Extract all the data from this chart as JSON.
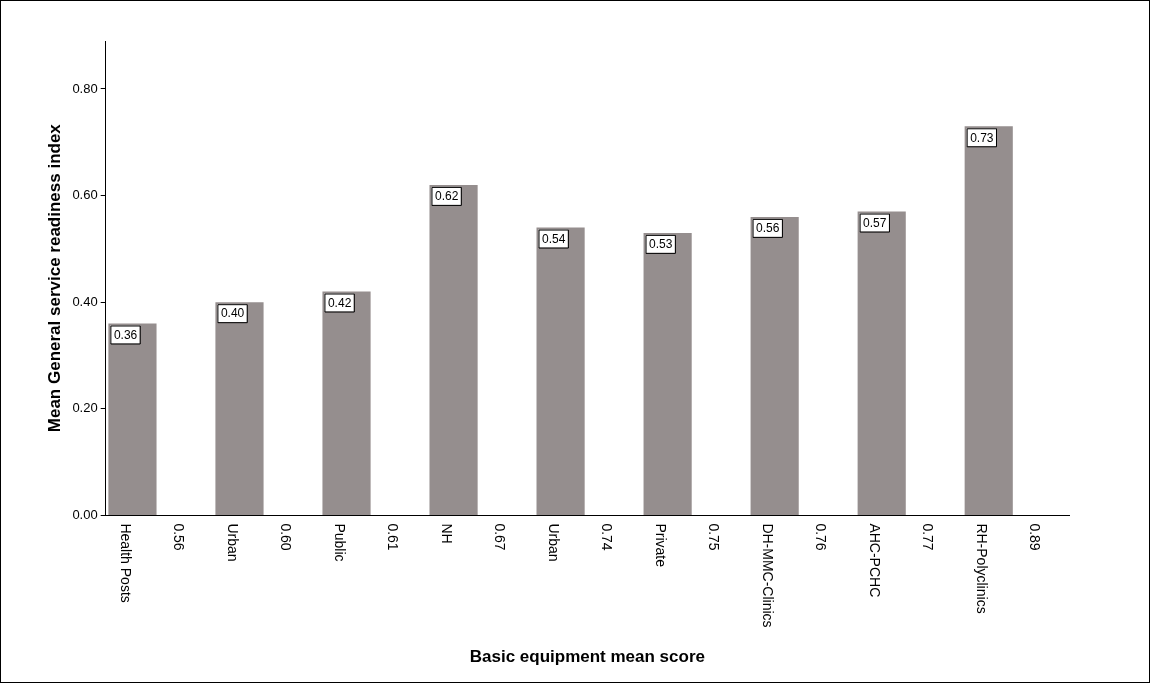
{
  "chart_data": {
    "type": "bar",
    "xlabel": "Basic equipment mean score",
    "ylabel": "Mean General service readiness index",
    "categories": [
      "Health Posts",
      "0.56",
      "Urban",
      "0.60",
      "Public",
      "0.61",
      "NH",
      "0.67",
      "Urban",
      "0.74",
      "Private",
      "0.75",
      "DH-MMC-Clinics",
      "0.76",
      "AHC-PCHC",
      "0.77",
      "RH-Polyclinics",
      "0.89"
    ],
    "values": [
      0.36,
      null,
      0.4,
      null,
      0.42,
      null,
      0.62,
      null,
      0.54,
      null,
      0.53,
      null,
      0.56,
      null,
      0.57,
      null,
      0.73,
      null
    ],
    "value_labels": [
      "0.36",
      null,
      "0.40",
      null,
      "0.42",
      null,
      "0.62",
      null,
      "0.54",
      null,
      "0.53",
      null,
      "0.56",
      null,
      "0.57",
      null,
      "0.73",
      null
    ],
    "color": "#958e8e",
    "grid": false,
    "legend": false,
    "ylim": [
      0,
      0.89
    ],
    "yticks": [
      {
        "value": 0,
        "label": "0.00"
      },
      {
        "value": 0.2,
        "label": "0.20"
      },
      {
        "value": 0.4,
        "label": "0.40"
      },
      {
        "value": 0.6,
        "label": "0.60"
      },
      {
        "value": 0.8,
        "label": "0.80"
      }
    ]
  }
}
